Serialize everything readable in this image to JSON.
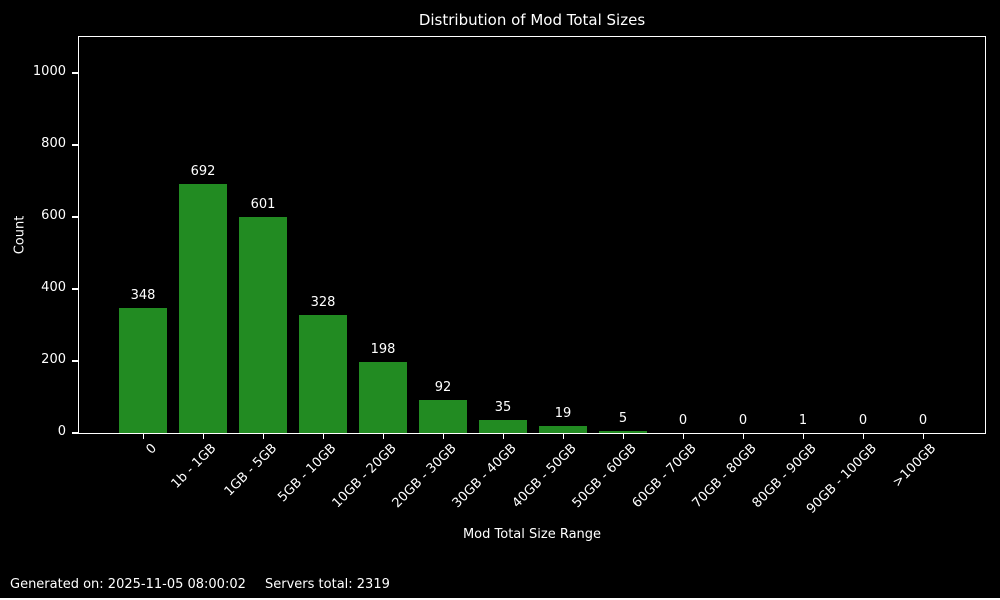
{
  "page": {
    "background": "#000000",
    "text_color": "#ffffff"
  },
  "chart_data": {
    "type": "bar",
    "title": "Distribution of Mod Total Sizes",
    "xlabel": "Mod Total Size Range",
    "ylabel": "Count",
    "categories": [
      "0",
      "1b - 1GB",
      "1GB - 5GB",
      "5GB - 10GB",
      "10GB - 20GB",
      "20GB - 30GB",
      "30GB - 40GB",
      "40GB - 50GB",
      "50GB - 60GB",
      "60GB - 70GB",
      "70GB - 80GB",
      "80GB - 90GB",
      "90GB - 100GB",
      ">100GB"
    ],
    "values": [
      348,
      692,
      601,
      328,
      198,
      92,
      35,
      19,
      5,
      0,
      0,
      1,
      0,
      0
    ],
    "ylim": [
      0,
      1100
    ],
    "yticks": [
      0,
      200,
      400,
      600,
      800,
      1000
    ],
    "bar_color": "#228B22",
    "background": "#000000",
    "grid": false,
    "legend_position": "none",
    "x_tick_rotation_deg": 45
  },
  "footer": {
    "generated_on": "Generated on: 2025-11-05 08:00:02",
    "servers_total": "Servers total: 2319"
  }
}
